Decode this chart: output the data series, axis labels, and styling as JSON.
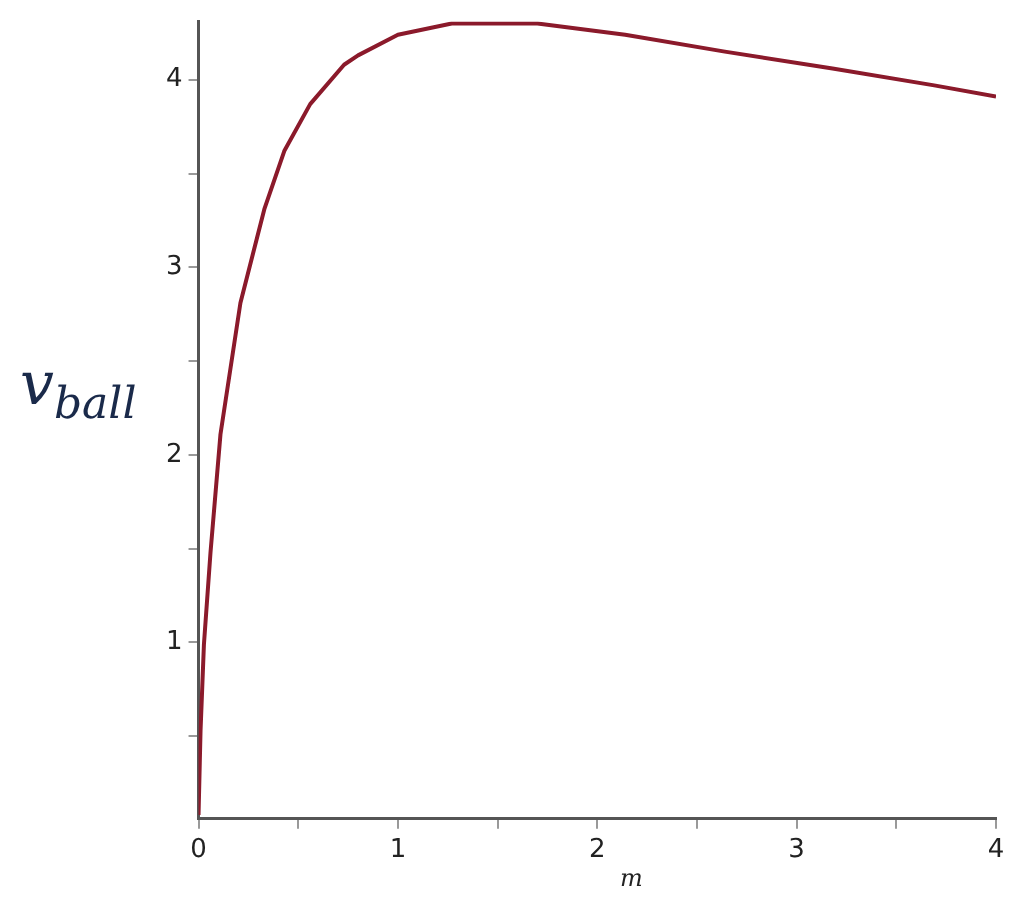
{
  "chart_data": {
    "type": "line",
    "xlabel": "m",
    "ylabel": "v$_{ball}$",
    "series": [
      {
        "color": "#8b1a2b",
        "x": [
          0,
          0.01,
          0.027,
          0.06,
          0.11,
          0.21,
          0.33,
          0.43,
          0.56,
          0.73,
          0.8,
          1.0,
          1.27,
          1.7,
          2.14,
          2.64,
          3.18,
          3.69,
          4.0
        ],
        "values": [
          0.08,
          0.53,
          0.99,
          1.48,
          2.11,
          2.81,
          3.31,
          3.62,
          3.87,
          4.08,
          4.13,
          4.24,
          4.3,
          4.3,
          4.24,
          4.15,
          4.06,
          3.97,
          3.91
        ]
      }
    ],
    "xlim": [
      0,
      4
    ],
    "ylim": [
      0.06,
      4.31
    ],
    "xticks": [
      0,
      {
        "value": 0.5,
        "label": null
      },
      1,
      {
        "value": 1.5,
        "label": null
      },
      2,
      {
        "value": 2.5,
        "label": null
      },
      3,
      {
        "value": 3.5,
        "label": null
      },
      4
    ],
    "yticks": [
      {
        "value": 0.5,
        "label": null
      },
      1,
      {
        "value": 1.5,
        "label": null
      },
      2,
      {
        "value": 2.5,
        "label": null
      },
      3,
      {
        "value": 3.5,
        "label": null
      },
      4
    ],
    "grid": false,
    "legend": false,
    "marker": "none",
    "line_style": "solid"
  }
}
